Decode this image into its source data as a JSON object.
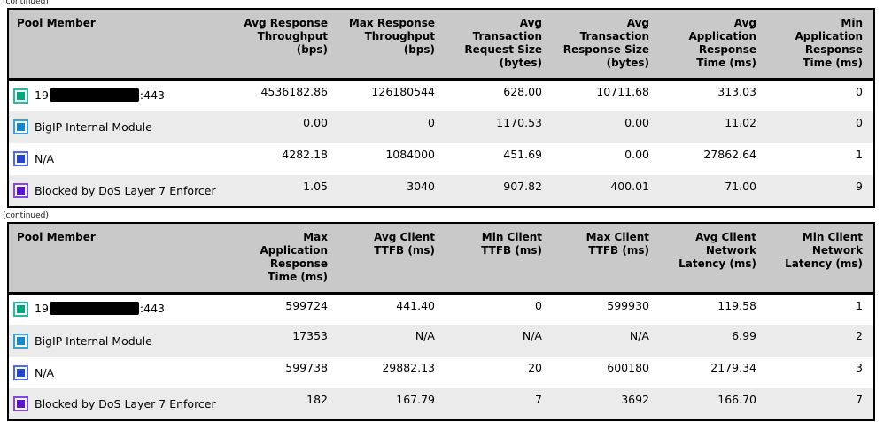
{
  "continued_label": "(continued)",
  "members": [
    {
      "label_prefix": "19",
      "label_redacted": true,
      "label_suffix": ":443",
      "icon": "teal-square-icon",
      "icon_border": "#2bb89e",
      "icon_fill": "#00a87e"
    },
    {
      "label": "BigIP Internal Module",
      "label_redacted": false,
      "icon": "lightblue-square-icon",
      "icon_border": "#35a3d9",
      "icon_fill": "#1787c9"
    },
    {
      "label": "N/A",
      "label_redacted": false,
      "icon": "blue-square-icon",
      "icon_border": "#5069e6",
      "icon_fill": "#2546d2"
    },
    {
      "label": "Blocked by DoS Layer 7 Enforcer",
      "label_redacted": false,
      "icon": "purple-square-icon",
      "icon_border": "#8148e4",
      "icon_fill": "#5d13d4"
    }
  ],
  "table1": {
    "member_header": "Pool Member",
    "columns": [
      "Avg Response\nThroughput\n(bps)",
      "Max Response\nThroughput\n(bps)",
      "Avg\nTransaction\nRequest Size\n(bytes)",
      "Avg\nTransaction\nResponse Size\n(bytes)",
      "Avg\nApplication\nResponse\nTime (ms)",
      "Min\nApplication\nResponse\nTime (ms)"
    ],
    "rows": [
      [
        "4536182.86",
        "126180544",
        "628.00",
        "10711.68",
        "313.03",
        "0"
      ],
      [
        "0.00",
        "0",
        "1170.53",
        "0.00",
        "11.02",
        "0"
      ],
      [
        "4282.18",
        "1084000",
        "451.69",
        "0.00",
        "27862.64",
        "1"
      ],
      [
        "1.05",
        "3040",
        "907.82",
        "400.01",
        "71.00",
        "9"
      ]
    ]
  },
  "table2": {
    "member_header": "Pool Member",
    "columns": [
      "Max\nApplication\nResponse\nTime (ms)",
      "Avg Client\nTTFB (ms)",
      "Min Client\nTTFB (ms)",
      "Max Client\nTTFB (ms)",
      "Avg Client\nNetwork\nLatency (ms)",
      "Min Client\nNetwork\nLatency (ms)"
    ],
    "rows": [
      [
        "599724",
        "441.40",
        "0",
        "599930",
        "119.58",
        "1"
      ],
      [
        "17353",
        "N/A",
        "N/A",
        "N/A",
        "6.99",
        "2"
      ],
      [
        "599738",
        "29882.13",
        "20",
        "600180",
        "2179.34",
        "3"
      ],
      [
        "182",
        "167.79",
        "7",
        "3692",
        "166.70",
        "7"
      ]
    ]
  }
}
